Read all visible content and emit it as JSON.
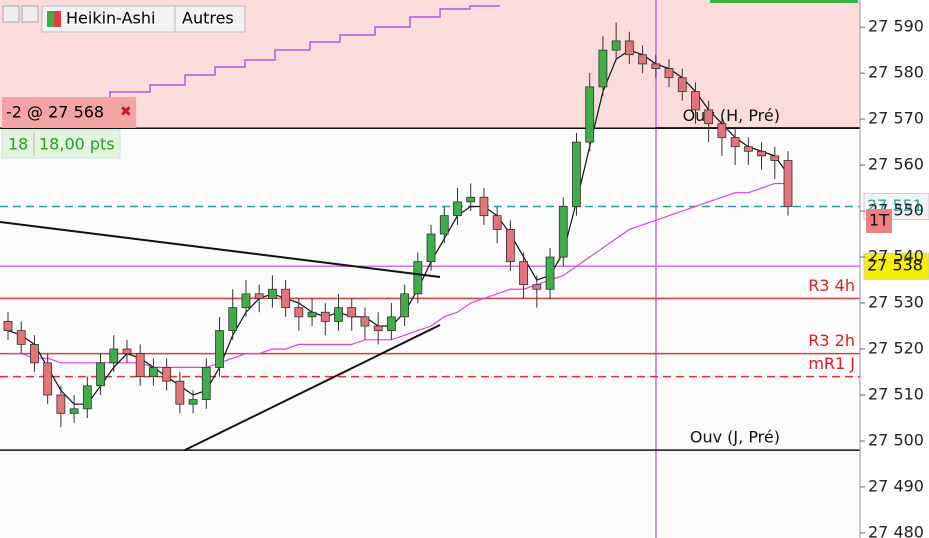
{
  "chart_data": {
    "type": "candlestick",
    "toolbar": [
      "Heikin-Ashi",
      "Autres"
    ],
    "position": {
      "label": "-2 @ 27 568",
      "qty": "18",
      "pts": "18,00 pts"
    },
    "timeframe": "1T",
    "ylim": [
      27478.9,
      27595.9
    ],
    "yticks": [
      {
        "value": 27480,
        "label": "27 480"
      },
      {
        "value": 27490,
        "label": "27 490"
      },
      {
        "value": 27500,
        "label": "27 500"
      },
      {
        "value": 27510,
        "label": "27 510"
      },
      {
        "value": 27520,
        "label": "27 520"
      },
      {
        "value": 27530,
        "label": "27 530"
      },
      {
        "value": 27540,
        "label": "27 540"
      },
      {
        "value": 27550,
        "label": "27 550"
      },
      {
        "value": 27560,
        "label": "27 560"
      },
      {
        "value": 27570,
        "label": "27 570"
      },
      {
        "value": 27580,
        "label": "27 580"
      },
      {
        "value": 27590,
        "label": "27 590"
      }
    ],
    "up_color": "#3fae49",
    "down_color": "#e4737c",
    "opens": [
      27526,
      27524,
      27521,
      27517,
      27510,
      27506,
      27507,
      27512,
      27517,
      27520,
      27519,
      27514,
      27516,
      27513,
      27508,
      27509,
      27516,
      27524,
      27529,
      27532,
      27531,
      27533,
      27529,
      27527,
      27528,
      27526,
      27529,
      27527,
      27525,
      27524,
      27527,
      27532,
      27539,
      27545,
      27549,
      27552,
      27553,
      27549,
      27546,
      27539,
      27534,
      27533,
      27540,
      27551,
      27565,
      27577,
      27585,
      27587,
      27584,
      27582,
      27581,
      27579,
      27576,
      27572,
      27569,
      27566,
      27564,
      27563,
      27562,
      27561
    ],
    "highs": [
      27528,
      27526,
      27523,
      27519,
      27512,
      27510,
      27514,
      27519,
      27523,
      27522,
      27521,
      27518,
      27518,
      27515,
      27511,
      27518,
      27527,
      27533,
      27535,
      27534,
      27536,
      27535,
      27531,
      27531,
      27530,
      27532,
      27531,
      27529,
      27528,
      27530,
      27534,
      27541,
      27547,
      27551,
      27555,
      27556,
      27555,
      27551,
      27548,
      27541,
      27536,
      27542,
      27553,
      27567,
      27580,
      27588,
      27591,
      27589,
      27586,
      27584,
      27583,
      27581,
      27578,
      27574,
      27571,
      27568,
      27566,
      27565,
      27564,
      27563
    ],
    "lows": [
      27522,
      27519,
      27515,
      27508,
      27503,
      27504,
      27505,
      27510,
      27515,
      27517,
      27512,
      27512,
      27511,
      27506,
      27506,
      27507,
      27514,
      27522,
      27527,
      27528,
      27529,
      27527,
      27524,
      27525,
      27523,
      27524,
      27524,
      27522,
      27521,
      27522,
      27525,
      27530,
      27537,
      27543,
      27547,
      27550,
      27547,
      27543,
      27537,
      27531,
      27529,
      27531,
      27538,
      27549,
      27563,
      27575,
      27583,
      27582,
      27580,
      27579,
      27577,
      27574,
      27569,
      27565,
      27562,
      27560,
      27560,
      27559,
      27557,
      27549
    ],
    "closes": [
      27524,
      27521,
      27517,
      27510,
      27506,
      27507,
      27512,
      27517,
      27520,
      27519,
      27514,
      27516,
      27513,
      27508,
      27509,
      27516,
      27524,
      27529,
      27532,
      27531,
      27533,
      27529,
      27527,
      27528,
      27526,
      27529,
      27527,
      27525,
      27524,
      27527,
      27532,
      27539,
      27545,
      27549,
      27552,
      27553,
      27549,
      27546,
      27539,
      27534,
      27533,
      27540,
      27551,
      27565,
      27577,
      27585,
      27587,
      27584,
      27582,
      27581,
      27579,
      27576,
      27572,
      27569,
      27566,
      27564,
      27563,
      27562,
      27561,
      27551
    ],
    "series": [
      {
        "color": "#e040e0",
        "values": [
          27519,
          27519,
          27518,
          27518,
          27517,
          27517,
          27517,
          27517,
          27517,
          27517,
          27517,
          27516,
          27516,
          27516,
          27516,
          27516,
          27517,
          27518,
          27519,
          27519,
          27520,
          27520,
          27521,
          27521,
          27521,
          27521,
          27521,
          27522,
          27522,
          27522,
          27523,
          27524,
          27525,
          27527,
          27528,
          27530,
          27531,
          27532,
          27533,
          27533,
          27534,
          27535,
          27536,
          27538,
          27540,
          27542,
          27544,
          27546,
          27547,
          27548,
          27549,
          27550,
          27551,
          27552,
          27553,
          27554,
          27554,
          27555,
          27556,
          27556
        ]
      },
      {
        "color": "#111111",
        "values": [
          27524,
          27523,
          27521,
          27516,
          27511,
          27508,
          27508,
          27512,
          27516,
          27519,
          27518,
          27516,
          27514,
          27512,
          27510,
          27511,
          27516,
          27523,
          27528,
          27531,
          27532,
          27531,
          27530,
          27528,
          27527,
          27528,
          27527,
          27527,
          27525,
          27525,
          27528,
          27533,
          27539,
          27544,
          27549,
          27551,
          27551,
          27549,
          27545,
          27540,
          27535,
          27536,
          27541,
          27552,
          27564,
          27576,
          27583,
          27585,
          27584,
          27582,
          27581,
          27579,
          27576,
          27572,
          27569,
          27566,
          27564,
          27563,
          27562,
          27558
        ]
      }
    ],
    "levels": [
      {
        "value": 27568,
        "label": "Ouv (H, Pré)",
        "color": "#111111",
        "dash": false,
        "shade_above": "#fadcdc",
        "label_color": "#111111"
      },
      {
        "value": 27551,
        "color": "#2a9d9d",
        "dash": true,
        "badge": "27 551",
        "badge_bg": "#f4f4f4",
        "badge_color": "#2a9d9d"
      },
      {
        "value": 27538,
        "color": "#d070e8",
        "dash": false,
        "badge": "27 538",
        "badge_bg": "#f5f000",
        "badge_color": "#111111"
      },
      {
        "value": 27531,
        "label": "R3 4h",
        "color": "#d84040",
        "dash": false,
        "label_color": "#d82020"
      },
      {
        "value": 27519,
        "label": "R3 2h",
        "color": "#d84040",
        "dash": false,
        "label_color": "#d82020"
      },
      {
        "value": 27514,
        "label": "mR1 J",
        "color": "#e03030",
        "dash": true,
        "label_color": "#d82020"
      },
      {
        "value": 27498,
        "label": "Ouv (J, Pré)",
        "color": "#111111",
        "dash": false,
        "label_color": "#111111"
      }
    ]
  }
}
